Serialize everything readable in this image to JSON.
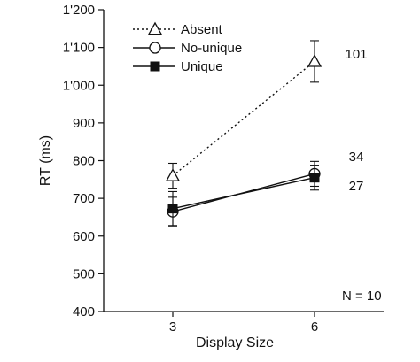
{
  "chart_data": {
    "type": "line",
    "xlabel": "Display Size",
    "ylabel": "RT (ms)",
    "categories": [
      "3",
      "6"
    ],
    "ylim": [
      400,
      1200
    ],
    "yticks": [
      400,
      500,
      600,
      700,
      800,
      900,
      1000,
      1100,
      1200
    ],
    "ytick_labels": [
      "400",
      "500",
      "600",
      "700",
      "800",
      "900",
      "1'000",
      "1'100",
      "1'200"
    ],
    "grid": false,
    "legend_position": "top-left",
    "series": [
      {
        "name": "Absent",
        "marker": "open-triangle",
        "line": "dotted",
        "values": [
          760,
          1063
        ],
        "errors": [
          33,
          55
        ],
        "slope_label": "101"
      },
      {
        "name": "No-unique",
        "marker": "open-circle",
        "line": "solid",
        "values": [
          665,
          765
        ],
        "errors": [
          38,
          33
        ],
        "slope_label": "34"
      },
      {
        "name": "Unique",
        "marker": "filled-square",
        "line": "solid",
        "values": [
          673,
          755
        ],
        "errors": [
          45,
          33
        ],
        "slope_label": "27"
      }
    ],
    "annotation": "N = 10"
  }
}
